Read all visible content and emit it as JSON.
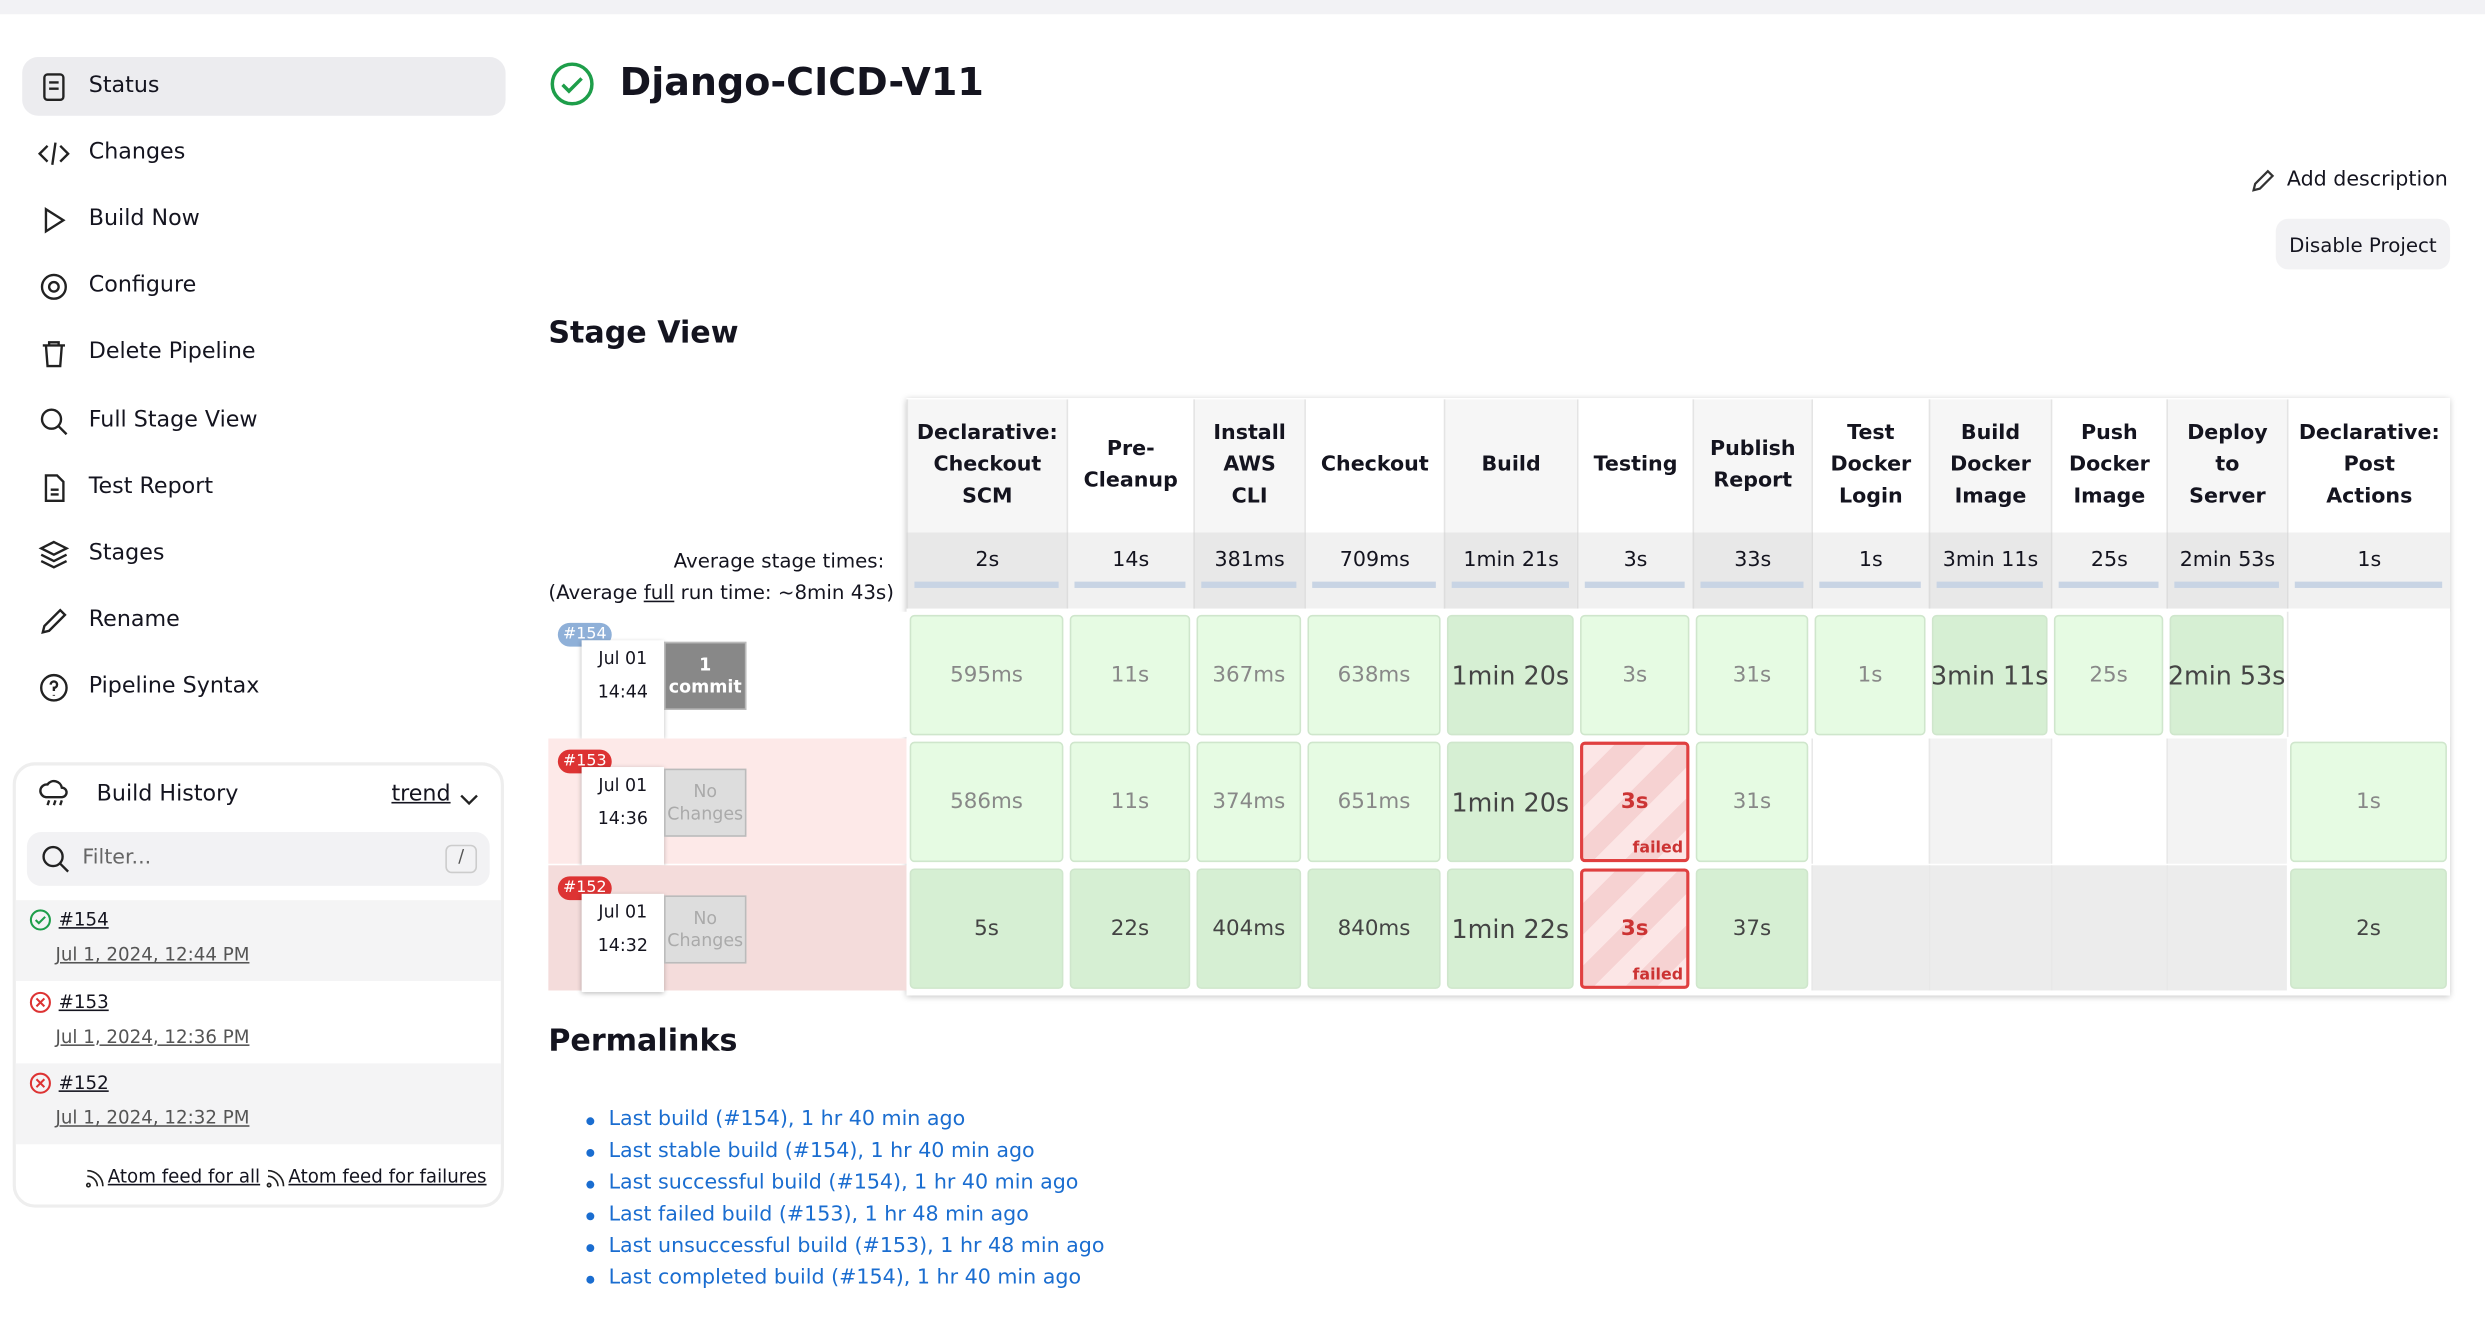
{
  "sidebar": {
    "items": [
      "Status",
      "Changes",
      "Build Now",
      "Configure",
      "Delete Pipeline",
      "Full Stage View",
      "Test Report",
      "Stages",
      "Rename",
      "Pipeline Syntax"
    ]
  },
  "build_history": {
    "title": "Build History",
    "trend": "trend",
    "filter": "Filter...",
    "shortcut": "/",
    "builds": [
      {
        "number": "#154",
        "date": "Jul 1, 2024, 12:44 PM",
        "status": "success"
      },
      {
        "number": "#153",
        "date": "Jul 1, 2024, 12:36 PM",
        "status": "failed"
      },
      {
        "number": "#152",
        "date": "Jul 1, 2024, 12:32 PM",
        "status": "failed"
      }
    ],
    "feeds": [
      "Atom feed for all",
      "Atom feed for failures"
    ]
  },
  "header": {
    "title": "Django-CICD-V11",
    "add_description": "Add description",
    "disable": "Disable Project"
  },
  "stage_view": {
    "title": "Stage View",
    "avg_label": "Average stage times:",
    "avg_prefix": "(Average ",
    "avg_link": "full",
    "avg_suffix": " run time: ~8min 43s)",
    "stages": [
      {
        "name": "Declarative: Checkout SCM",
        "avg": "2s"
      },
      {
        "name": "Pre-Cleanup",
        "avg": "14s"
      },
      {
        "name": "Install AWS CLI",
        "avg": "381ms"
      },
      {
        "name": "Checkout",
        "avg": "709ms"
      },
      {
        "name": "Build",
        "avg": "1min 21s"
      },
      {
        "name": "Testing",
        "avg": "3s"
      },
      {
        "name": "Publish Report",
        "avg": "33s"
      },
      {
        "name": "Test Docker Login",
        "avg": "1s"
      },
      {
        "name": "Build Docker Image",
        "avg": "3min 11s"
      },
      {
        "name": "Push Docker Image",
        "avg": "25s"
      },
      {
        "name": "Deploy to Server",
        "avg": "2min 53s"
      },
      {
        "name": "Declarative: Post Actions",
        "avg": "1s"
      }
    ],
    "rows": [
      {
        "badge": "#154",
        "date": "Jul 01",
        "time": "14:44",
        "changes": "1 commit",
        "cells": [
          {
            "text": "595ms"
          },
          {
            "text": "11s"
          },
          {
            "text": "367ms"
          },
          {
            "text": "638ms"
          },
          {
            "text": "1min 20s"
          },
          {
            "text": "3s"
          },
          {
            "text": "31s"
          },
          {
            "text": "1s"
          },
          {
            "text": "3min 11s"
          },
          {
            "text": "25s"
          },
          {
            "text": "2min 53s"
          },
          null
        ]
      },
      {
        "badge": "#153",
        "date": "Jul 01",
        "time": "14:36",
        "changes": "No Changes",
        "cells": [
          {
            "text": "586ms"
          },
          {
            "text": "11s"
          },
          {
            "text": "374ms"
          },
          {
            "text": "651ms"
          },
          {
            "text": "1min 20s"
          },
          {
            "text": "3s",
            "status": "failed"
          },
          {
            "text": "31s"
          },
          null,
          null,
          null,
          null,
          {
            "text": "1s"
          }
        ]
      },
      {
        "badge": "#152",
        "date": "Jul 01",
        "time": "14:32",
        "changes": "No Changes",
        "cells": [
          {
            "text": "5s"
          },
          {
            "text": "22s"
          },
          {
            "text": "404ms"
          },
          {
            "text": "840ms"
          },
          {
            "text": "1min 22s"
          },
          {
            "text": "3s",
            "status": "failed"
          },
          {
            "text": "37s"
          },
          null,
          null,
          null,
          null,
          {
            "text": "2s"
          }
        ]
      }
    ]
  },
  "permalinks": {
    "title": "Permalinks",
    "links": [
      "Last build (#154), 1 hr 40 min ago",
      "Last stable build (#154), 1 hr 40 min ago",
      "Last successful build (#154), 1 hr 40 min ago",
      "Last failed build (#153), 1 hr 48 min ago",
      "Last unsuccessful build (#153), 1 hr 48 min ago",
      "Last completed build (#154), 1 hr 40 min ago"
    ]
  }
}
